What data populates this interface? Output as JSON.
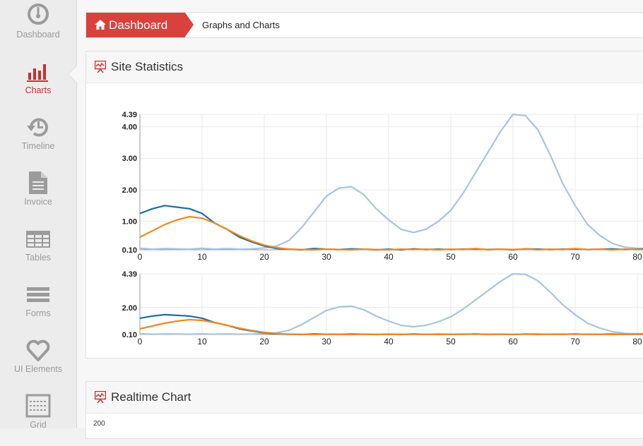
{
  "sidebar": {
    "items": [
      {
        "label": "Dashboard",
        "icon": "dashboard-gauge-icon",
        "active": false
      },
      {
        "label": "Charts",
        "icon": "bar-chart-icon",
        "active": true
      },
      {
        "label": "Timeline",
        "icon": "history-icon",
        "active": false
      },
      {
        "label": "Invoice",
        "icon": "document-icon",
        "active": false
      },
      {
        "label": "Tables",
        "icon": "table-icon",
        "active": false
      },
      {
        "label": "Forms",
        "icon": "form-lines-icon",
        "active": false
      },
      {
        "label": "UI Elements",
        "icon": "heart-icon",
        "active": false
      },
      {
        "label": "Grid",
        "icon": "grid-icon",
        "active": false
      }
    ]
  },
  "breadcrumb": {
    "home": "Dashboard",
    "current": "Graphs and Charts"
  },
  "panels": {
    "site_statistics": {
      "title": "Site Statistics",
      "icon": "presentation-chart-icon"
    },
    "realtime": {
      "title": "Realtime Chart",
      "icon": "presentation-chart-icon",
      "first_tick": "200"
    }
  },
  "colors": {
    "accent": "#d9413d",
    "series_light": "#a6c4e2",
    "series_dark": "#1f6e9c",
    "series_orange": "#ee8a22",
    "grid": "#e8e8e8"
  },
  "chart_data": [
    {
      "type": "line",
      "title": "",
      "xlabel": "",
      "ylabel": "",
      "xlim": [
        0,
        80
      ],
      "ylim": [
        0.1,
        4.39
      ],
      "yticks": [
        "4.39",
        "4.00",
        "3.00",
        "2.00",
        "1.00",
        "0.10"
      ],
      "ytick_values": [
        4.39,
        4.0,
        3.0,
        2.0,
        1.0,
        0.1
      ],
      "xticks": [
        0,
        10,
        20,
        30,
        40,
        50,
        60,
        70,
        80
      ],
      "grid": true,
      "series": [
        {
          "color": "#a6c4e2",
          "x": [
            0,
            2,
            4,
            6,
            8,
            10,
            12,
            14,
            16,
            18,
            20,
            22,
            24,
            26,
            28,
            30,
            32,
            34,
            36,
            38,
            40,
            42,
            44,
            46,
            48,
            50,
            52,
            54,
            56,
            58,
            60,
            62,
            64,
            66,
            68,
            70,
            72,
            74,
            76,
            78,
            80,
            82
          ],
          "y": [
            0.15,
            0.12,
            0.14,
            0.13,
            0.12,
            0.15,
            0.12,
            0.14,
            0.12,
            0.13,
            0.16,
            0.22,
            0.4,
            0.8,
            1.3,
            1.8,
            2.05,
            2.1,
            1.85,
            1.4,
            1.05,
            0.75,
            0.65,
            0.75,
            1.0,
            1.35,
            1.9,
            2.55,
            3.2,
            3.85,
            4.39,
            4.35,
            3.9,
            3.1,
            2.2,
            1.5,
            0.9,
            0.55,
            0.3,
            0.18,
            0.15,
            0.15
          ]
        },
        {
          "color": "#1f6e9c",
          "x": [
            0,
            2,
            4,
            6,
            8,
            10,
            12,
            14,
            16,
            18,
            20,
            22,
            24,
            26,
            28,
            30,
            32,
            34,
            36,
            38,
            40,
            42,
            44,
            46,
            48,
            50,
            52,
            54,
            56,
            58,
            60,
            62,
            64,
            66,
            68,
            70,
            72,
            74,
            76,
            78,
            80,
            82
          ],
          "y": [
            1.25,
            1.4,
            1.5,
            1.45,
            1.4,
            1.25,
            0.95,
            0.75,
            0.5,
            0.35,
            0.22,
            0.14,
            0.12,
            0.1,
            0.14,
            0.12,
            0.11,
            0.13,
            0.12,
            0.1,
            0.12,
            0.1,
            0.13,
            0.11,
            0.12,
            0.11,
            0.12,
            0.13,
            0.11,
            0.12,
            0.1,
            0.13,
            0.12,
            0.11,
            0.12,
            0.13,
            0.11,
            0.12,
            0.13,
            0.11,
            0.12,
            0.12
          ]
        },
        {
          "color": "#ee8a22",
          "x": [
            0,
            2,
            4,
            6,
            8,
            10,
            12,
            14,
            16,
            18,
            20,
            22,
            24,
            26,
            28,
            30,
            32,
            34,
            36,
            38,
            40,
            42,
            44,
            46,
            48,
            50,
            52,
            54,
            56,
            58,
            60,
            62,
            64,
            66,
            68,
            70,
            72,
            74,
            76,
            78,
            80,
            82
          ],
          "y": [
            0.5,
            0.7,
            0.9,
            1.05,
            1.15,
            1.1,
            0.95,
            0.75,
            0.55,
            0.38,
            0.25,
            0.17,
            0.12,
            0.11,
            0.1,
            0.12,
            0.11,
            0.1,
            0.12,
            0.11,
            0.1,
            0.12,
            0.11,
            0.12,
            0.1,
            0.12,
            0.11,
            0.14,
            0.1,
            0.12,
            0.11,
            0.13,
            0.1,
            0.12,
            0.11,
            0.14,
            0.11,
            0.12,
            0.1,
            0.12,
            0.11,
            0.11
          ]
        }
      ]
    },
    {
      "type": "line",
      "title": "",
      "xlabel": "",
      "ylabel": "",
      "xlim": [
        0,
        80
      ],
      "ylim": [
        0.1,
        4.39
      ],
      "yticks": [
        "4.39",
        "2.00",
        "0.10"
      ],
      "ytick_values": [
        4.39,
        2.0,
        0.1
      ],
      "xticks": [
        0,
        10,
        20,
        30,
        40,
        50,
        60,
        70,
        80
      ],
      "grid": true,
      "series": [
        {
          "color": "#a6c4e2",
          "x": [
            0,
            2,
            4,
            6,
            8,
            10,
            12,
            14,
            16,
            18,
            20,
            22,
            24,
            26,
            28,
            30,
            32,
            34,
            36,
            38,
            40,
            42,
            44,
            46,
            48,
            50,
            52,
            54,
            56,
            58,
            60,
            62,
            64,
            66,
            68,
            70,
            72,
            74,
            76,
            78,
            80,
            82
          ],
          "y": [
            0.15,
            0.12,
            0.14,
            0.13,
            0.12,
            0.15,
            0.12,
            0.14,
            0.12,
            0.13,
            0.16,
            0.22,
            0.4,
            0.8,
            1.3,
            1.8,
            2.05,
            2.1,
            1.85,
            1.4,
            1.05,
            0.75,
            0.65,
            0.75,
            1.0,
            1.35,
            1.9,
            2.55,
            3.2,
            3.85,
            4.39,
            4.35,
            3.9,
            3.1,
            2.2,
            1.5,
            0.9,
            0.55,
            0.3,
            0.18,
            0.15,
            0.15
          ]
        },
        {
          "color": "#1f6e9c",
          "x": [
            0,
            2,
            4,
            6,
            8,
            10,
            12,
            14,
            16,
            18,
            20,
            22,
            24,
            26,
            28,
            30,
            32,
            34,
            36,
            38,
            40,
            42,
            44,
            46,
            48,
            50,
            52,
            54,
            56,
            58,
            60,
            62,
            64,
            66,
            68,
            70,
            72,
            74,
            76,
            78,
            80,
            82
          ],
          "y": [
            1.25,
            1.4,
            1.5,
            1.45,
            1.4,
            1.25,
            0.95,
            0.75,
            0.5,
            0.35,
            0.22,
            0.14,
            0.12,
            0.1,
            0.14,
            0.12,
            0.11,
            0.13,
            0.12,
            0.1,
            0.12,
            0.1,
            0.13,
            0.11,
            0.12,
            0.11,
            0.12,
            0.13,
            0.11,
            0.12,
            0.1,
            0.13,
            0.12,
            0.11,
            0.12,
            0.13,
            0.11,
            0.12,
            0.13,
            0.11,
            0.12,
            0.12
          ]
        },
        {
          "color": "#ee8a22",
          "x": [
            0,
            2,
            4,
            6,
            8,
            10,
            12,
            14,
            16,
            18,
            20,
            22,
            24,
            26,
            28,
            30,
            32,
            34,
            36,
            38,
            40,
            42,
            44,
            46,
            48,
            50,
            52,
            54,
            56,
            58,
            60,
            62,
            64,
            66,
            68,
            70,
            72,
            74,
            76,
            78,
            80,
            82
          ],
          "y": [
            0.5,
            0.7,
            0.9,
            1.05,
            1.15,
            1.1,
            0.95,
            0.75,
            0.55,
            0.38,
            0.25,
            0.17,
            0.12,
            0.11,
            0.1,
            0.12,
            0.11,
            0.1,
            0.12,
            0.11,
            0.1,
            0.12,
            0.11,
            0.12,
            0.1,
            0.12,
            0.11,
            0.14,
            0.1,
            0.12,
            0.11,
            0.13,
            0.1,
            0.12,
            0.11,
            0.14,
            0.11,
            0.12,
            0.1,
            0.12,
            0.11,
            0.11
          ]
        }
      ]
    }
  ]
}
